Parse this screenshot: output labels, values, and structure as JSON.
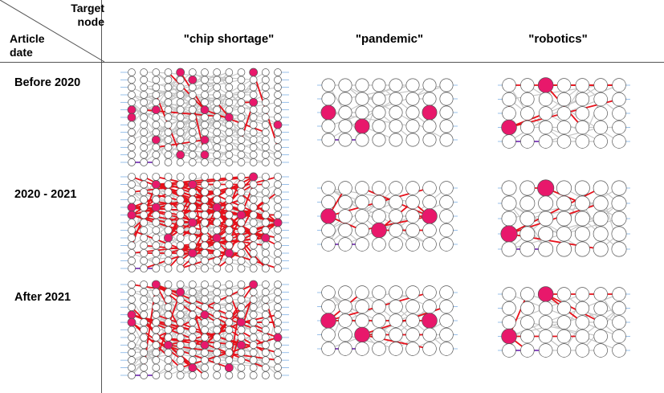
{
  "header": {
    "corner_top": "Target\nnode",
    "corner_bottom": "Article\ndate",
    "columns": [
      {
        "id": "chip",
        "label": "\"chip shortage\""
      },
      {
        "id": "pandemic",
        "label": "\"pandemic\""
      },
      {
        "id": "robotics",
        "label": "\"robotics\""
      }
    ]
  },
  "rows": [
    {
      "id": "before",
      "label": "Before 2020"
    },
    {
      "id": "mid",
      "label": "2020 - 2021"
    },
    {
      "id": "after",
      "label": "After 2021"
    }
  ],
  "colors": {
    "highlight_node": "#e8186b",
    "node_stroke": "#555555",
    "edge_red": "#e8101a",
    "edge_gray": "#c8c8c8",
    "edge_purple": "#8a4fc0",
    "node_label": "#4a90d9"
  },
  "graphs": {
    "chip": {
      "cols": 12,
      "rows": 12,
      "highlights": {
        "before": [
          [
            4,
            0
          ],
          [
            10,
            0
          ],
          [
            5,
            1
          ],
          [
            0,
            5
          ],
          [
            2,
            5
          ],
          [
            6,
            5
          ],
          [
            10,
            4
          ],
          [
            0,
            6
          ],
          [
            8,
            6
          ],
          [
            12,
            7
          ],
          [
            2,
            9
          ],
          [
            6,
            9
          ],
          [
            6,
            11
          ],
          [
            4,
            11
          ]
        ],
        "mid": [
          [
            5,
            1
          ],
          [
            10,
            0
          ],
          [
            2,
            1
          ],
          [
            0,
            4
          ],
          [
            2,
            4
          ],
          [
            0,
            5
          ],
          [
            7,
            4
          ],
          [
            5,
            6
          ],
          [
            9,
            5
          ],
          [
            12,
            6
          ],
          [
            3,
            8
          ],
          [
            7,
            8
          ],
          [
            11,
            8
          ],
          [
            5,
            10
          ],
          [
            8,
            10
          ]
        ],
        "after": [
          [
            2,
            0
          ],
          [
            10,
            0
          ],
          [
            4,
            1
          ],
          [
            0,
            4
          ],
          [
            0,
            5
          ],
          [
            6,
            4
          ],
          [
            9,
            5
          ],
          [
            12,
            7
          ],
          [
            3,
            8
          ],
          [
            6,
            8
          ],
          [
            9,
            8
          ],
          [
            5,
            11
          ],
          [
            8,
            11
          ]
        ]
      },
      "red_edges": {
        "before": 12,
        "mid": 90,
        "after": 45
      }
    },
    "pandemic": {
      "cols": 7,
      "rows": 4,
      "highlights": {
        "before": [
          [
            0,
            2
          ],
          [
            2,
            3
          ],
          [
            6,
            2
          ]
        ],
        "mid": [
          [
            0,
            2
          ],
          [
            3,
            3
          ],
          [
            6,
            2
          ]
        ],
        "after": [
          [
            0,
            2
          ],
          [
            2,
            3
          ],
          [
            6,
            2
          ]
        ]
      },
      "red_edges": {
        "before": 0,
        "mid": 10,
        "after": 7
      }
    },
    "robotics": {
      "cols": 6,
      "rows": 4,
      "highlights": {
        "before": [
          [
            2,
            0
          ],
          [
            0,
            3
          ]
        ],
        "mid": [
          [
            2,
            0
          ],
          [
            0,
            3
          ]
        ],
        "after": [
          [
            2,
            0
          ],
          [
            0,
            3
          ]
        ]
      },
      "red_edges": {
        "before": 9,
        "mid": 8,
        "after": 6
      }
    }
  }
}
